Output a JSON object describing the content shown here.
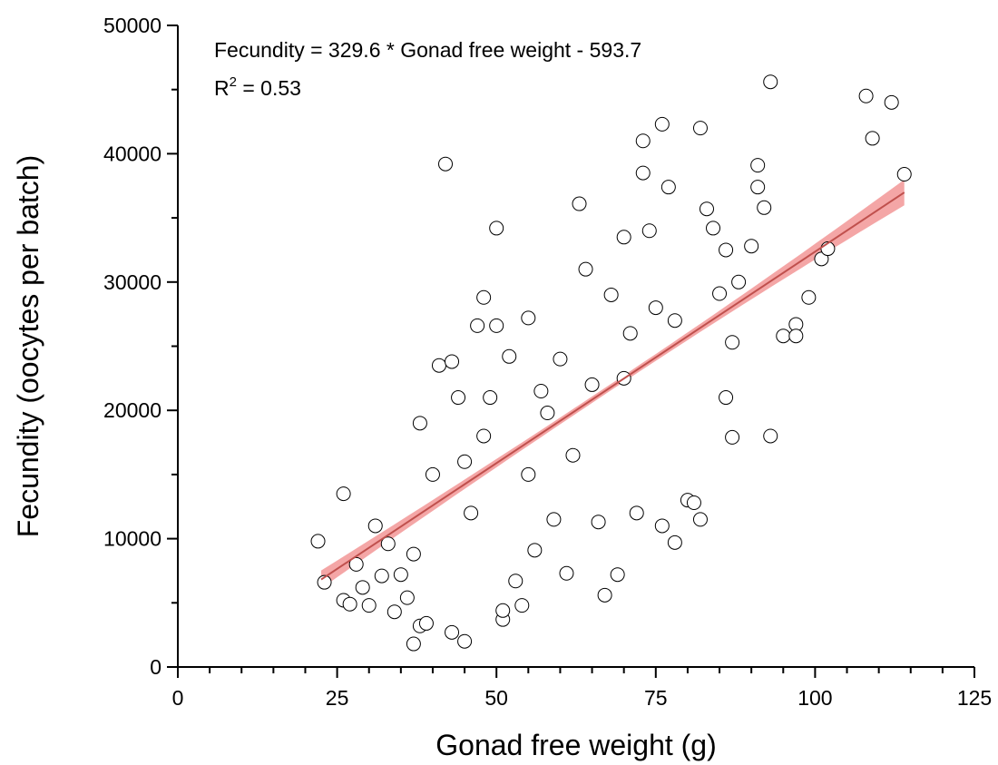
{
  "chart_data": {
    "type": "scatter",
    "title": "",
    "xlabel": "Gonad free weight (g)",
    "ylabel": "Fecundity (oocytes per batch)",
    "xlim": [
      0,
      125
    ],
    "ylim": [
      0,
      50000
    ],
    "x_ticks": [
      0,
      25,
      50,
      75,
      100,
      125
    ],
    "y_ticks": [
      0,
      10000,
      20000,
      30000,
      40000,
      50000
    ],
    "x_tick_labels": [
      "0",
      "25",
      "50",
      "75",
      "100",
      "125"
    ],
    "y_tick_labels": [
      "0",
      "10000",
      "20000",
      "30000",
      "40000",
      "50000"
    ],
    "grid": false,
    "annotations": {
      "equation": "Fecundity = 329.6 * Gonad free weight - 593.7",
      "r2_prefix": "R",
      "r2_sup": "2",
      "r2_value": " = 0.53"
    },
    "regression": {
      "slope": 329.6,
      "intercept": -593.7,
      "x_range": [
        22.5,
        114
      ],
      "line_color": "#c0504d",
      "band_color": "#f08080",
      "band_halfwidth_at_ends": [
        700,
        1000
      ],
      "band_halfwidth_at_center": 250
    },
    "marker": {
      "shape": "open-circle",
      "edge_color": "#000000",
      "face_color": "#ffffff"
    },
    "points": [
      [
        22,
        9800
      ],
      [
        23,
        6600
      ],
      [
        26,
        13500
      ],
      [
        26,
        5200
      ],
      [
        27,
        4900
      ],
      [
        28,
        8000
      ],
      [
        29,
        6200
      ],
      [
        30,
        4800
      ],
      [
        31,
        11000
      ],
      [
        32,
        7100
      ],
      [
        33,
        9600
      ],
      [
        34,
        4300
      ],
      [
        35,
        7200
      ],
      [
        36,
        5400
      ],
      [
        37,
        1800
      ],
      [
        37,
        8800
      ],
      [
        38,
        3200
      ],
      [
        38,
        19000
      ],
      [
        39,
        3400
      ],
      [
        40,
        15000
      ],
      [
        41,
        23500
      ],
      [
        42,
        39200
      ],
      [
        43,
        23800
      ],
      [
        43,
        2700
      ],
      [
        44,
        21000
      ],
      [
        45,
        2000
      ],
      [
        45,
        16000
      ],
      [
        46,
        12000
      ],
      [
        47,
        26600
      ],
      [
        48,
        28800
      ],
      [
        48,
        18000
      ],
      [
        49,
        21000
      ],
      [
        50,
        26600
      ],
      [
        50,
        34200
      ],
      [
        51,
        3700
      ],
      [
        51,
        4400
      ],
      [
        52,
        24200
      ],
      [
        53,
        6700
      ],
      [
        54,
        4800
      ],
      [
        55,
        27200
      ],
      [
        55,
        15000
      ],
      [
        56,
        9100
      ],
      [
        57,
        21500
      ],
      [
        58,
        19800
      ],
      [
        59,
        11500
      ],
      [
        60,
        24000
      ],
      [
        61,
        7300
      ],
      [
        62,
        16500
      ],
      [
        63,
        36100
      ],
      [
        64,
        31000
      ],
      [
        65,
        22000
      ],
      [
        66,
        11300
      ],
      [
        67,
        5600
      ],
      [
        68,
        29000
      ],
      [
        69,
        7200
      ],
      [
        70,
        33500
      ],
      [
        70,
        22500
      ],
      [
        71,
        26000
      ],
      [
        72,
        12000
      ],
      [
        73,
        41000
      ],
      [
        73,
        38500
      ],
      [
        74,
        34000
      ],
      [
        75,
        28000
      ],
      [
        76,
        42300
      ],
      [
        76,
        11000
      ],
      [
        77,
        37400
      ],
      [
        78,
        9700
      ],
      [
        78,
        27000
      ],
      [
        80,
        13000
      ],
      [
        81,
        12800
      ],
      [
        82,
        11500
      ],
      [
        82,
        42000
      ],
      [
        83,
        35700
      ],
      [
        84,
        34200
      ],
      [
        85,
        29100
      ],
      [
        86,
        32500
      ],
      [
        86,
        21000
      ],
      [
        87,
        25300
      ],
      [
        87,
        17900
      ],
      [
        88,
        30000
      ],
      [
        90,
        32800
      ],
      [
        91,
        39100
      ],
      [
        91,
        37400
      ],
      [
        92,
        35800
      ],
      [
        93,
        45600
      ],
      [
        93,
        18000
      ],
      [
        95,
        25800
      ],
      [
        97,
        26700
      ],
      [
        97,
        25800
      ],
      [
        99,
        28800
      ],
      [
        101,
        31800
      ],
      [
        102,
        32600
      ],
      [
        108,
        44500
      ],
      [
        109,
        41200
      ],
      [
        112,
        44000
      ],
      [
        114,
        38400
      ]
    ]
  }
}
